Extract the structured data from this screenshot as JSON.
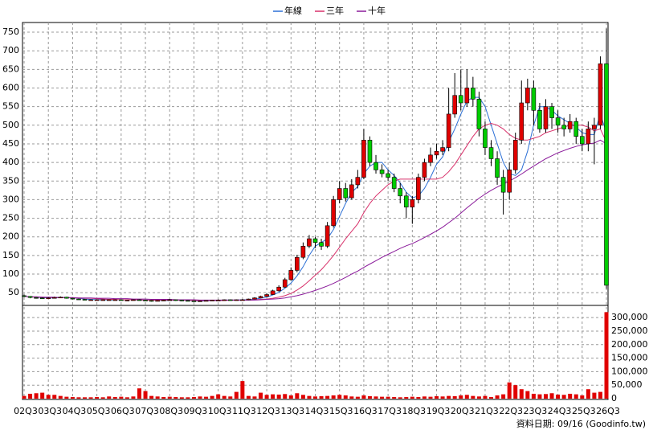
{
  "chart_data": [
    {
      "type": "candlestick",
      "categories": [
        "02Q3",
        null,
        null,
        null,
        "03Q3",
        null,
        null,
        null,
        "04Q3",
        null,
        null,
        null,
        "05Q3",
        null,
        null,
        null,
        "06Q3",
        null,
        null,
        null,
        "07Q3",
        null,
        null,
        null,
        "08Q3",
        null,
        null,
        null,
        "09Q3",
        null,
        null,
        null,
        "10Q3",
        null,
        null,
        null,
        "11Q3",
        null,
        null,
        null,
        "12Q3",
        null,
        null,
        null,
        "13Q3",
        null,
        null,
        null,
        "14Q3",
        null,
        null,
        null,
        "15Q3",
        null,
        null,
        null,
        "16Q3",
        null,
        null,
        null,
        "17Q3",
        null,
        null,
        null,
        "18Q3",
        null,
        null,
        null,
        "19Q3",
        null,
        null,
        null,
        "20Q3",
        null,
        null,
        null,
        "21Q3",
        null,
        null,
        null,
        "22Q3",
        null,
        null,
        null,
        "23Q3",
        null,
        null,
        null,
        "24Q3",
        null,
        null,
        null,
        "25Q3",
        null,
        null,
        null,
        "26Q3"
      ],
      "open": [
        42,
        40,
        37,
        36,
        35,
        36,
        37,
        38,
        35,
        33,
        32,
        31,
        31,
        31,
        31,
        31,
        31,
        30,
        30,
        31,
        30,
        29,
        28,
        29,
        30,
        31,
        30,
        29,
        28,
        27,
        28,
        29,
        30,
        30,
        31,
        30,
        31,
        31,
        33,
        36,
        40,
        45,
        55,
        65,
        85,
        110,
        145,
        175,
        195,
        185,
        175,
        230,
        300,
        330,
        305,
        340,
        360,
        460,
        400,
        380,
        370,
        360,
        330,
        310,
        280,
        300,
        360,
        400,
        420,
        430,
        440,
        530,
        580,
        560,
        600,
        570,
        490,
        440,
        410,
        360,
        320,
        380,
        460,
        560,
        600,
        540,
        490,
        550,
        520,
        500,
        490,
        510,
        470,
        450,
        490,
        500,
        665
      ],
      "high": [
        45,
        41,
        38,
        37,
        38,
        39,
        40,
        39,
        36,
        34,
        33,
        32,
        32,
        32,
        32,
        32,
        32,
        31,
        32,
        32,
        31,
        30,
        30,
        31,
        33,
        32,
        31,
        30,
        29,
        29,
        30,
        31,
        32,
        32,
        32,
        32,
        33,
        34,
        38,
        42,
        48,
        58,
        70,
        90,
        118,
        152,
        185,
        205,
        200,
        195,
        240,
        310,
        350,
        345,
        355,
        380,
        490,
        470,
        420,
        395,
        380,
        370,
        345,
        320,
        310,
        370,
        410,
        440,
        450,
        460,
        600,
        640,
        650,
        650,
        630,
        590,
        510,
        460,
        430,
        380,
        400,
        480,
        620,
        625,
        620,
        560,
        570,
        560,
        540,
        520,
        530,
        520,
        490,
        510,
        520,
        685,
        760
      ],
      "low": [
        38,
        35,
        34,
        33,
        34,
        35,
        36,
        34,
        32,
        31,
        30,
        30,
        30,
        30,
        30,
        30,
        29,
        29,
        29,
        29,
        28,
        26,
        27,
        28,
        29,
        28,
        27,
        27,
        26,
        26,
        27,
        28,
        29,
        29,
        29,
        29,
        30,
        30,
        32,
        35,
        39,
        44,
        53,
        63,
        82,
        105,
        140,
        170,
        170,
        165,
        170,
        225,
        290,
        295,
        300,
        330,
        355,
        390,
        370,
        360,
        350,
        320,
        290,
        250,
        235,
        290,
        350,
        390,
        410,
        420,
        430,
        520,
        540,
        550,
        550,
        470,
        420,
        390,
        340,
        260,
        300,
        370,
        450,
        540,
        500,
        480,
        480,
        490,
        480,
        470,
        480,
        450,
        430,
        430,
        395,
        490,
        60
      ],
      "close": [
        40,
        37,
        36,
        35,
        36,
        37,
        38,
        35,
        33,
        32,
        31,
        31,
        31,
        31,
        31,
        31,
        30,
        30,
        31,
        30,
        29,
        28,
        29,
        30,
        31,
        30,
        29,
        28,
        27,
        28,
        29,
        30,
        30,
        31,
        30,
        31,
        31,
        33,
        36,
        40,
        45,
        55,
        65,
        85,
        110,
        145,
        175,
        195,
        185,
        175,
        230,
        300,
        330,
        305,
        340,
        360,
        460,
        400,
        380,
        370,
        360,
        330,
        310,
        280,
        300,
        360,
        400,
        420,
        430,
        440,
        530,
        580,
        560,
        600,
        570,
        490,
        440,
        410,
        360,
        320,
        380,
        460,
        560,
        600,
        540,
        490,
        550,
        520,
        500,
        490,
        510,
        470,
        450,
        490,
        500,
        665,
        70
      ],
      "up_color": "#e00000",
      "down_color": "#00cc00",
      "series": [
        {
          "name": "年線",
          "color": "#2b6fd6",
          "values": [
            40,
            39,
            38,
            37,
            36,
            36,
            37,
            37,
            36,
            35,
            33,
            32,
            31,
            31,
            31,
            31,
            31,
            31,
            31,
            30,
            30,
            30,
            29,
            29,
            29,
            30,
            30,
            30,
            29,
            28,
            28,
            29,
            29,
            30,
            30,
            30,
            31,
            31,
            33,
            35,
            38,
            44,
            51,
            62,
            76,
            95,
            120,
            150,
            175,
            185,
            195,
            220,
            255,
            290,
            320,
            335,
            370,
            390,
            400,
            400,
            380,
            365,
            345,
            320,
            305,
            310,
            330,
            360,
            395,
            415,
            455,
            490,
            530,
            565,
            575,
            575,
            550,
            500,
            450,
            400,
            370,
            365,
            380,
            430,
            500,
            550,
            550,
            540,
            525,
            515,
            505,
            495,
            480,
            475,
            475,
            530,
            480
          ]
        },
        {
          "name": "三年",
          "color": "#d8306a",
          "values": [
            40,
            39,
            38,
            38,
            37,
            37,
            37,
            37,
            36,
            36,
            35,
            35,
            34,
            33,
            32,
            32,
            31,
            31,
            31,
            31,
            30,
            30,
            30,
            30,
            30,
            30,
            30,
            30,
            29,
            29,
            29,
            29,
            29,
            29,
            30,
            30,
            30,
            30,
            31,
            32,
            33,
            35,
            38,
            42,
            48,
            57,
            68,
            82,
            97,
            112,
            130,
            150,
            172,
            195,
            215,
            235,
            265,
            290,
            310,
            325,
            340,
            350,
            355,
            355,
            355,
            355,
            355,
            355,
            355,
            360,
            375,
            395,
            420,
            445,
            470,
            490,
            500,
            505,
            500,
            490,
            475,
            465,
            460,
            460,
            465,
            470,
            480,
            485,
            490,
            495,
            500,
            500,
            500,
            495,
            485,
            490,
            455
          ]
        },
        {
          "name": "十年",
          "color": "#8a1a9a",
          "values": [
            40,
            39,
            39,
            38,
            38,
            38,
            37,
            37,
            37,
            36,
            36,
            36,
            35,
            35,
            35,
            34,
            34,
            34,
            33,
            33,
            33,
            32,
            32,
            32,
            32,
            31,
            31,
            31,
            31,
            30,
            30,
            30,
            30,
            30,
            30,
            30,
            30,
            30,
            30,
            31,
            32,
            33,
            34,
            36,
            39,
            42,
            46,
            51,
            56,
            62,
            68,
            75,
            83,
            91,
            100,
            108,
            118,
            127,
            136,
            145,
            153,
            161,
            169,
            176,
            182,
            190,
            198,
            207,
            216,
            226,
            238,
            250,
            264,
            278,
            291,
            304,
            315,
            325,
            334,
            342,
            350,
            359,
            369,
            380,
            390,
            400,
            410,
            418,
            426,
            432,
            438,
            443,
            447,
            450,
            452,
            460,
            450
          ]
        }
      ],
      "ylim": [
        18,
        776
      ],
      "yticks": [
        50,
        100,
        150,
        200,
        250,
        300,
        350,
        400,
        450,
        500,
        550,
        600,
        650,
        700,
        750
      ],
      "grid": true,
      "note": "資料日期: 09/16  (Goodinfo.tw)"
    },
    {
      "type": "bar",
      "color": "#e00000",
      "values": [
        10000,
        18000,
        20000,
        22000,
        14000,
        14000,
        10000,
        7000,
        6000,
        5000,
        5000,
        5000,
        6000,
        5000,
        8000,
        6000,
        7000,
        5000,
        8000,
        38000,
        28000,
        10000,
        8000,
        6000,
        7000,
        6000,
        5000,
        5000,
        6000,
        8000,
        7000,
        10000,
        16000,
        10000,
        8000,
        25000,
        65000,
        10000,
        8000,
        22000,
        14000,
        16000,
        15000,
        17000,
        12000,
        20000,
        14000,
        10000,
        8000,
        9000,
        10000,
        12000,
        14000,
        12000,
        8000,
        7000,
        12000,
        9000,
        8000,
        7000,
        7000,
        6000,
        5000,
        6000,
        7000,
        6000,
        8000,
        7000,
        9000,
        8000,
        10000,
        9000,
        12000,
        14000,
        10000,
        8000,
        10000,
        6000,
        12000,
        16000,
        60000,
        50000,
        35000,
        28000,
        18000,
        16000,
        17000,
        20000,
        15000,
        14000,
        18000,
        16000,
        12000,
        35000,
        22000,
        25000,
        320000
      ],
      "ylim": [
        0,
        345000
      ],
      "yticks": [
        0,
        {
          "value": 50000,
          "label": "50,000"
        },
        {
          "value": 100000,
          "label": "100,000"
        },
        {
          "value": 150000,
          "label": "150,000"
        },
        {
          "value": 200000,
          "label": "200,000"
        },
        {
          "value": 250000,
          "label": "250,000"
        },
        {
          "value": 300000,
          "label": "300,000"
        }
      ],
      "grid": true
    }
  ]
}
